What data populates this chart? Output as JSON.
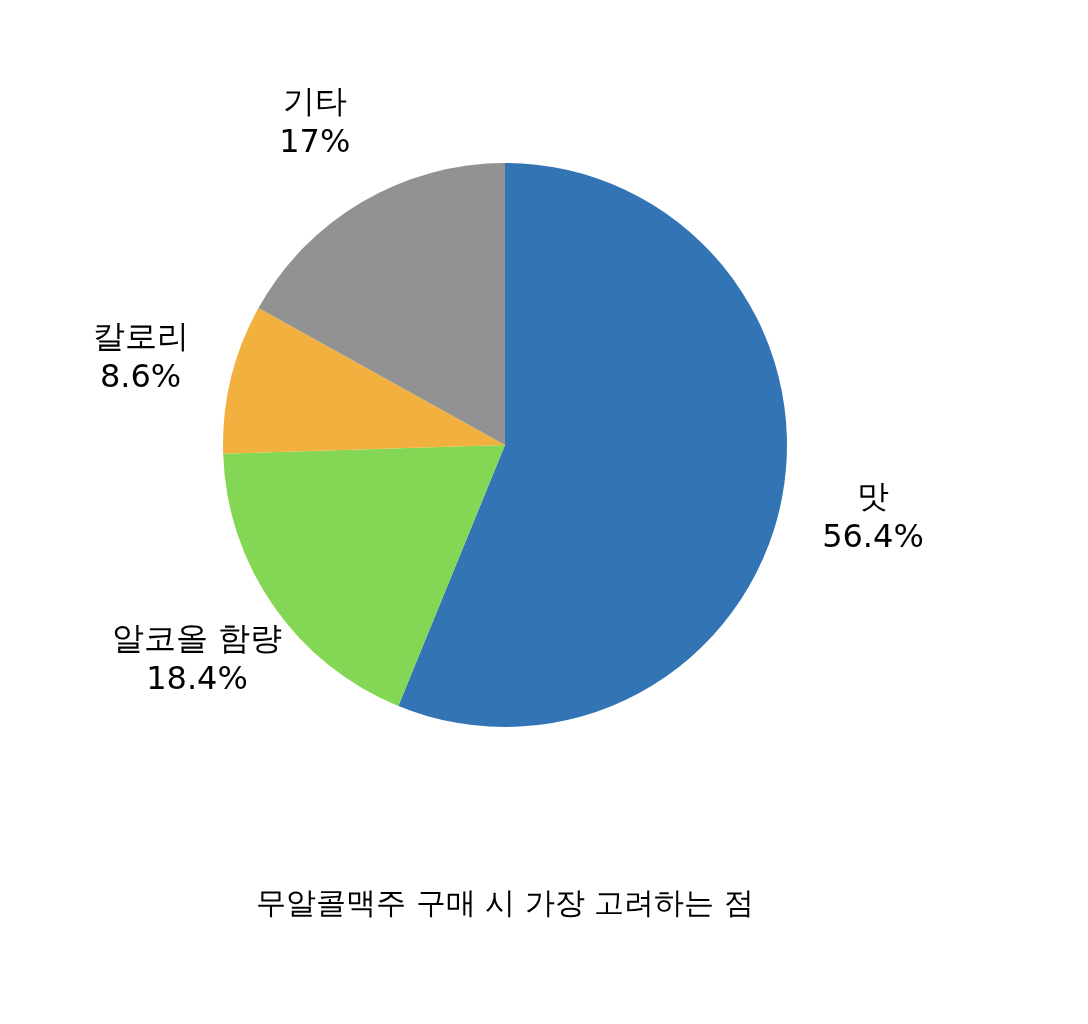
{
  "chart_data": {
    "type": "pie",
    "title": "무알콜맥주 구매 시 가장 고려하는 점",
    "categories": [
      "맛",
      "알코올 함량",
      "칼로리",
      "기타"
    ],
    "values": [
      56.4,
      18.4,
      8.6,
      17
    ],
    "colors": [
      "#3274b4",
      "#84d655",
      "#f2b03f",
      "#929292"
    ],
    "value_labels": [
      "56.4%",
      "18.4%",
      "8.6%",
      "17%"
    ],
    "legend": false
  }
}
